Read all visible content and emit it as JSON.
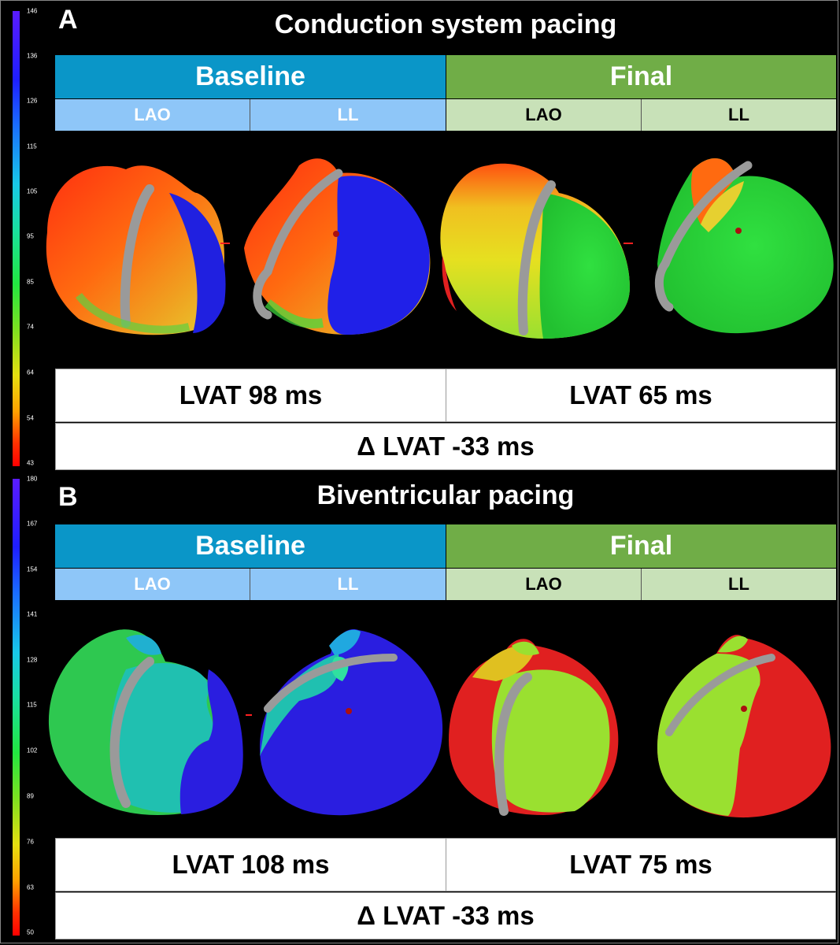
{
  "panels": [
    {
      "letter": "A",
      "title": "Conduction system pacing",
      "scale_ticks": [
        "146",
        "136",
        "126",
        "115",
        "105",
        "95",
        "85",
        "74",
        "64",
        "54",
        "43"
      ],
      "baseline_label": "Baseline",
      "final_label": "Final",
      "views": [
        "LAO",
        "LL",
        "LAO",
        "LL"
      ],
      "lvat_baseline": "LVAT 98 ms",
      "lvat_final": "LVAT 65 ms",
      "delta": "Δ LVAT -33 ms"
    },
    {
      "letter": "B",
      "title": "Biventricular pacing",
      "scale_ticks": [
        "180",
        "167",
        "154",
        "141",
        "128",
        "115",
        "102",
        "89",
        "76",
        "63",
        "50"
      ],
      "baseline_label": "Baseline",
      "final_label": "Final",
      "views": [
        "LAO",
        "LL",
        "LAO",
        "LL"
      ],
      "lvat_baseline": "LVAT 108 ms",
      "lvat_final": "LVAT 75 ms",
      "delta": "Δ LVAT -33 ms"
    }
  ],
  "colors": {
    "baseline_header": "#0a96c8",
    "final_header": "#70ad47",
    "baseline_sub": "#8ec6f8",
    "final_sub": "#c8e1b8"
  }
}
